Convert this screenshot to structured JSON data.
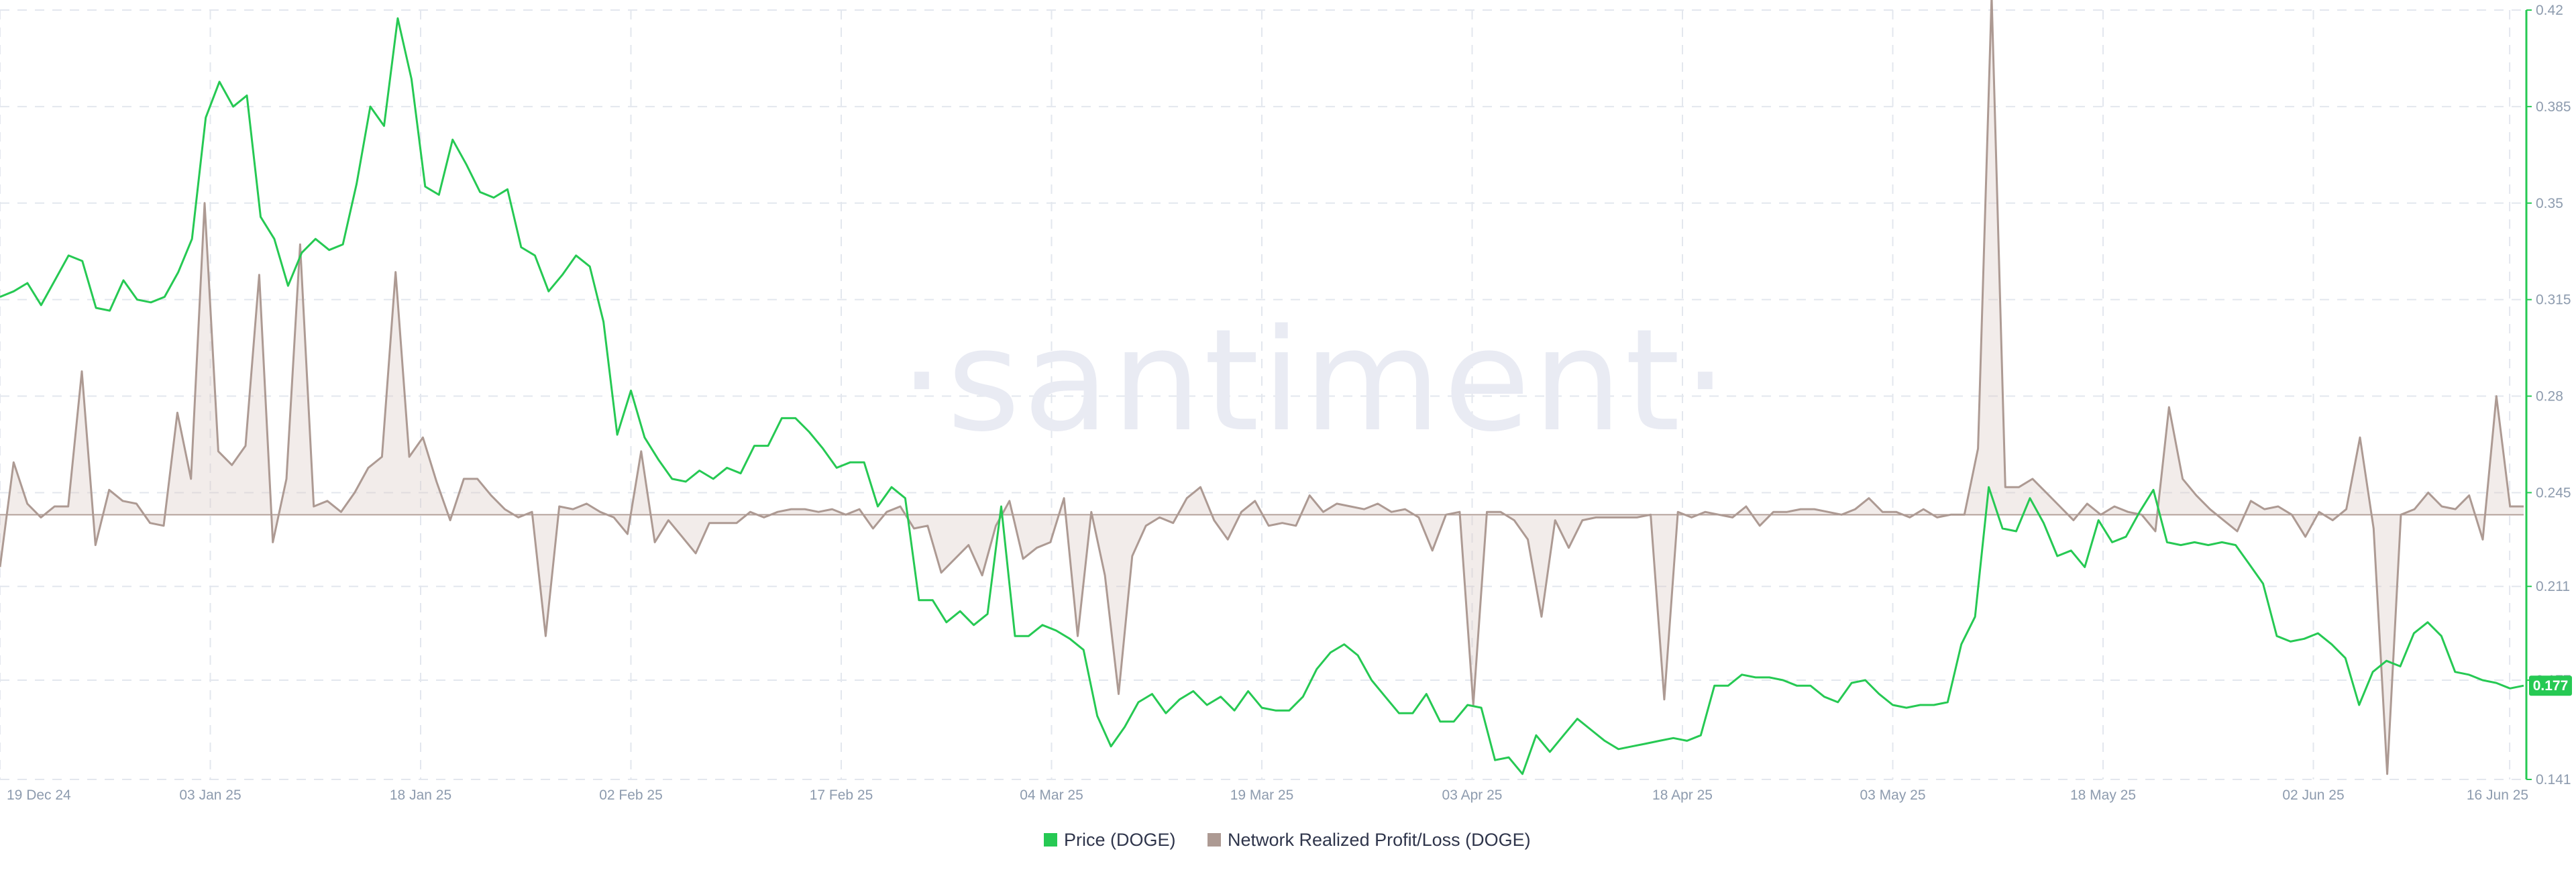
{
  "watermark": "·santiment·",
  "colors": {
    "price": "#26c953",
    "pnl_line": "#ad9a93",
    "pnl_fill": "#d9c9c4",
    "axis": "#26c953",
    "grid": "#e3e7ee",
    "tick": "#8d9bae"
  },
  "legend": [
    {
      "label": "Price (DOGE)",
      "color": "#26c953"
    },
    {
      "label": "Network Realized Profit/Loss (DOGE)",
      "color": "#ad9a93"
    }
  ],
  "current_price_badge": "0.177",
  "chart_data": {
    "type": "line",
    "x_ticks": [
      "19 Dec 24",
      "03 Jan 25",
      "18 Jan 25",
      "02 Feb 25",
      "17 Feb 25",
      "04 Mar 25",
      "19 Mar 25",
      "03 Apr 25",
      "18 Apr 25",
      "03 May 25",
      "18 May 25",
      "02 Jun 25",
      "16 Jun 25"
    ],
    "x_tick_days": [
      0,
      15,
      30,
      45,
      60,
      75,
      90,
      105,
      120,
      135,
      150,
      165,
      179
    ],
    "x_range_days": [
      0,
      180
    ],
    "y_ticks": [
      "0.42",
      "0.385",
      "0.35",
      "0.315",
      "0.28",
      "0.245",
      "0.211",
      "0.177",
      "0.141"
    ],
    "y_range": [
      0.141,
      0.42
    ],
    "grid": true,
    "legend_position": "bottom-center",
    "series": [
      {
        "name": "Price (DOGE)",
        "axis": "right",
        "values": [
          0.316,
          0.318,
          0.321,
          0.313,
          0.322,
          0.331,
          0.329,
          0.312,
          0.311,
          0.322,
          0.315,
          0.314,
          0.316,
          0.325,
          0.337,
          0.381,
          0.394,
          0.385,
          0.389,
          0.345,
          0.337,
          0.32,
          0.332,
          0.337,
          0.333,
          0.335,
          0.357,
          0.385,
          0.378,
          0.417,
          0.395,
          0.356,
          0.353,
          0.373,
          0.364,
          0.354,
          0.352,
          0.355,
          0.334,
          0.331,
          0.318,
          0.324,
          0.331,
          0.327,
          0.307,
          0.266,
          0.282,
          0.265,
          0.257,
          0.25,
          0.249,
          0.253,
          0.25,
          0.254,
          0.252,
          0.262,
          0.262,
          0.272,
          0.272,
          0.267,
          0.261,
          0.254,
          0.256,
          0.256,
          0.24,
          0.247,
          0.243,
          0.206,
          0.206,
          0.198,
          0.202,
          0.197,
          0.201,
          0.24,
          0.193,
          0.193,
          0.197,
          0.195,
          0.192,
          0.188,
          0.164,
          0.153,
          0.16,
          0.169,
          0.172,
          0.165,
          0.17,
          0.173,
          0.168,
          0.171,
          0.166,
          0.173,
          0.167,
          0.166,
          0.166,
          0.171,
          0.181,
          0.187,
          0.19,
          0.186,
          0.177,
          0.171,
          0.165,
          0.165,
          0.172,
          0.162,
          0.162,
          0.168,
          0.167,
          0.148,
          0.149,
          0.143,
          0.157,
          0.151,
          0.157,
          0.163,
          0.159,
          0.155,
          0.152,
          0.153,
          0.154,
          0.155,
          0.156,
          0.155,
          0.157,
          0.175,
          0.175,
          0.179,
          0.178,
          0.178,
          0.177,
          0.175,
          0.175,
          0.171,
          0.169,
          0.176,
          0.177,
          0.172,
          0.168,
          0.167,
          0.168,
          0.168,
          0.169,
          0.19,
          0.2,
          0.247,
          0.232,
          0.231,
          0.243,
          0.234,
          0.222,
          0.224,
          0.218,
          0.235,
          0.227,
          0.229,
          0.238,
          0.246,
          0.227,
          0.226,
          0.227,
          0.226,
          0.227,
          0.226,
          0.219,
          0.212,
          0.193,
          0.191,
          0.192,
          0.194,
          0.19,
          0.185,
          0.168,
          0.18,
          0.184,
          0.182,
          0.194,
          0.198,
          0.193,
          0.18,
          0.179,
          0.177,
          0.176,
          0.174,
          0.175
        ]
      },
      {
        "name": "Network Realized Profit/Loss (DOGE)",
        "axis": "left",
        "values": [
          0.218,
          0.256,
          0.241,
          0.236,
          0.24,
          0.24,
          0.289,
          0.226,
          0.246,
          0.242,
          0.241,
          0.234,
          0.233,
          0.274,
          0.25,
          0.35,
          0.26,
          0.255,
          0.262,
          0.324,
          0.227,
          0.25,
          0.335,
          0.24,
          0.242,
          0.238,
          0.245,
          0.254,
          0.258,
          0.325,
          0.258,
          0.265,
          0.249,
          0.235,
          0.25,
          0.25,
          0.244,
          0.239,
          0.236,
          0.238,
          0.193,
          0.24,
          0.239,
          0.241,
          0.238,
          0.236,
          0.23,
          0.26,
          0.227,
          0.235,
          0.229,
          0.223,
          0.234,
          0.234,
          0.234,
          0.238,
          0.236,
          0.238,
          0.239,
          0.239,
          0.238,
          0.239,
          0.237,
          0.239,
          0.232,
          0.238,
          0.24,
          0.232,
          0.233,
          0.216,
          0.221,
          0.226,
          0.215,
          0.233,
          0.242,
          0.221,
          0.225,
          0.227,
          0.243,
          0.193,
          0.238,
          0.215,
          0.172,
          0.222,
          0.233,
          0.236,
          0.234,
          0.243,
          0.247,
          0.235,
          0.228,
          0.238,
          0.242,
          0.233,
          0.234,
          0.233,
          0.244,
          0.238,
          0.241,
          0.24,
          0.239,
          0.241,
          0.238,
          0.239,
          0.236,
          0.224,
          0.237,
          0.238,
          0.168,
          0.238,
          0.238,
          0.235,
          0.228,
          0.2,
          0.235,
          0.225,
          0.235,
          0.236,
          0.236,
          0.236,
          0.236,
          0.237,
          0.17,
          0.238,
          0.236,
          0.238,
          0.237,
          0.236,
          0.24,
          0.233,
          0.238,
          0.238,
          0.239,
          0.239,
          0.238,
          0.237,
          0.239,
          0.243,
          0.238,
          0.238,
          0.236,
          0.239,
          0.236,
          0.237,
          0.237,
          0.261,
          0.425,
          0.247,
          0.247,
          0.25,
          0.245,
          0.24,
          0.235,
          0.241,
          0.237,
          0.24,
          0.238,
          0.237,
          0.231,
          0.276,
          0.25,
          0.244,
          0.239,
          0.235,
          0.231,
          0.242,
          0.239,
          0.24,
          0.237,
          0.229,
          0.238,
          0.235,
          0.239,
          0.265,
          0.232,
          0.143,
          0.237,
          0.239,
          0.245,
          0.24,
          0.239,
          0.244,
          0.228,
          0.28,
          0.24,
          0.24
        ]
      }
    ]
  }
}
